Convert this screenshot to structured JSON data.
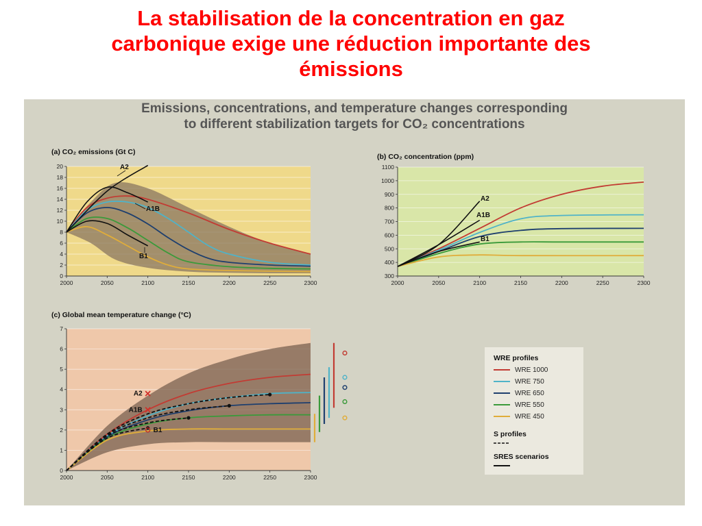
{
  "slide": {
    "title_line1": "La stabilisation de la concentration en gaz",
    "title_line2": "carbonique exige une réduction importante des",
    "title_line3": "émissions"
  },
  "figure": {
    "title_line1": "Emissions, concentrations, and temperature changes corresponding",
    "title_line2": "to different stabilization targets for CO₂ concentrations"
  },
  "colors": {
    "wre1000": "#c23b33",
    "wre750": "#4fb3c8",
    "wre650": "#1e3f6e",
    "wre550": "#3a9a3a",
    "wre450": "#e0ad3a",
    "sres": "#111111",
    "band_a": "#8a7560",
    "band_b": "#8a7560",
    "band_c": "#7a6250",
    "panel_bg_a": "#efd98a",
    "panel_bg_b": "#d9e6a8",
    "panel_bg_c": "#efc8aa"
  },
  "legend": {
    "wre_header": "WRE profiles",
    "wre_items": [
      "WRE 1000",
      "WRE 750",
      "WRE 650",
      "WRE 550",
      "WRE 450"
    ],
    "s_header": "S profiles",
    "sres_header": "SRES scenarios"
  },
  "chart_data": [
    {
      "type": "line",
      "title": "(a) CO₂ emissions (Gt C)",
      "xlim": [
        2000,
        2300
      ],
      "ylim": [
        0,
        20
      ],
      "xticks": [
        2000,
        2050,
        2100,
        2150,
        2200,
        2250,
        2300
      ],
      "yticks": [
        0,
        2,
        4,
        6,
        8,
        10,
        12,
        14,
        16,
        18,
        20
      ],
      "band": {
        "x": [
          2000,
          2030,
          2060,
          2100,
          2150,
          2200,
          2250,
          2300
        ],
        "upper": [
          8,
          13.5,
          17,
          16,
          12.5,
          9,
          6,
          4
        ],
        "lower": [
          8,
          6,
          3,
          1.5,
          0.8,
          0.6,
          0.5,
          0.5
        ]
      },
      "series": [
        {
          "name": "WRE 1000",
          "x": [
            2000,
            2025,
            2050,
            2075,
            2100,
            2150,
            2200,
            2250,
            2300
          ],
          "y": [
            8,
            12.5,
            14.2,
            14.6,
            14,
            11.5,
            8.5,
            6,
            4
          ]
        },
        {
          "name": "WRE 750",
          "x": [
            2000,
            2025,
            2050,
            2075,
            2100,
            2125,
            2150,
            2175,
            2200,
            2250,
            2300
          ],
          "y": [
            8,
            12,
            13.5,
            13.5,
            12.5,
            10.5,
            8,
            5.5,
            4,
            2.5,
            2
          ]
        },
        {
          "name": "WRE 650",
          "x": [
            2000,
            2025,
            2050,
            2075,
            2100,
            2125,
            2150,
            2175,
            2200,
            2250,
            2300
          ],
          "y": [
            8,
            11.5,
            12.5,
            11.5,
            9.5,
            7,
            4.8,
            3.2,
            2.5,
            2,
            1.8
          ]
        },
        {
          "name": "WRE 550",
          "x": [
            2000,
            2025,
            2050,
            2075,
            2100,
            2125,
            2150,
            2200,
            2250,
            2300
          ],
          "y": [
            8,
            10.5,
            10.5,
            8.8,
            6.5,
            4.2,
            2.6,
            1.7,
            1.4,
            1.3
          ]
        },
        {
          "name": "WRE 450",
          "x": [
            2000,
            2025,
            2050,
            2075,
            2100,
            2125,
            2150,
            2200,
            2300
          ],
          "y": [
            8,
            9,
            7.5,
            5.5,
            3.5,
            2,
            1.3,
            1,
            0.8
          ]
        },
        {
          "name": "A2",
          "x": [
            2000,
            2050,
            2100
          ],
          "y": [
            8,
            15.5,
            20.2
          ]
        },
        {
          "name": "A1B",
          "x": [
            2000,
            2025,
            2050,
            2075,
            2100
          ],
          "y": [
            8,
            13.5,
            16.2,
            15.2,
            13.5
          ]
        },
        {
          "name": "B1",
          "x": [
            2000,
            2025,
            2050,
            2075,
            2100
          ],
          "y": [
            8,
            10,
            9.6,
            7.5,
            5.5
          ]
        }
      ],
      "labels": [
        "A2",
        "A1B",
        "B1"
      ]
    },
    {
      "type": "line",
      "title": "(b) CO₂ concentration (ppm)",
      "xlim": [
        2000,
        2300
      ],
      "ylim": [
        300,
        1100
      ],
      "xticks": [
        2000,
        2050,
        2100,
        2150,
        2200,
        2250,
        2300
      ],
      "yticks": [
        300,
        400,
        500,
        600,
        700,
        800,
        900,
        1000,
        1100
      ],
      "series": [
        {
          "name": "WRE 1000",
          "x": [
            2000,
            2050,
            2100,
            2150,
            2200,
            2250,
            2300
          ],
          "y": [
            370,
            500,
            650,
            800,
            900,
            960,
            990
          ]
        },
        {
          "name": "WRE 750",
          "x": [
            2000,
            2050,
            2100,
            2150,
            2200,
            2300
          ],
          "y": [
            370,
            490,
            620,
            720,
            745,
            750
          ]
        },
        {
          "name": "WRE 650",
          "x": [
            2000,
            2050,
            2100,
            2150,
            2200,
            2300
          ],
          "y": [
            370,
            480,
            590,
            635,
            648,
            650
          ]
        },
        {
          "name": "WRE 550",
          "x": [
            2000,
            2050,
            2100,
            2150,
            2200,
            2300
          ],
          "y": [
            370,
            465,
            535,
            550,
            550,
            550
          ]
        },
        {
          "name": "WRE 450",
          "x": [
            2000,
            2050,
            2100,
            2150,
            2300
          ],
          "y": [
            370,
            440,
            455,
            450,
            450
          ]
        },
        {
          "name": "A2",
          "x": [
            2000,
            2050,
            2100
          ],
          "y": [
            370,
            530,
            850
          ]
        },
        {
          "name": "A1B",
          "x": [
            2000,
            2050,
            2100
          ],
          "y": [
            370,
            530,
            710
          ]
        },
        {
          "name": "B1",
          "x": [
            2000,
            2050,
            2100
          ],
          "y": [
            370,
            480,
            550
          ]
        }
      ],
      "labels": [
        "A2",
        "A1B",
        "B1"
      ]
    },
    {
      "type": "line",
      "title": "(c) Global mean temperature change (°C)",
      "xlim": [
        2000,
        2300
      ],
      "ylim": [
        0,
        7
      ],
      "xticks": [
        2000,
        2050,
        2100,
        2150,
        2200,
        2250,
        2300
      ],
      "yticks": [
        0,
        1,
        2,
        3,
        4,
        5,
        6,
        7
      ],
      "band": {
        "x": [
          2000,
          2050,
          2100,
          2150,
          2200,
          2250,
          2300
        ],
        "upper": [
          0,
          2.2,
          3.7,
          4.8,
          5.5,
          6,
          6.3
        ],
        "lower": [
          0,
          0.9,
          1.3,
          1.4,
          1.4,
          1.4,
          1.4
        ]
      },
      "series": [
        {
          "name": "WRE 1000",
          "x": [
            2000,
            2050,
            2100,
            2150,
            2200,
            2250,
            2300
          ],
          "y": [
            0,
            1.8,
            3,
            3.8,
            4.3,
            4.6,
            4.75
          ]
        },
        {
          "name": "WRE 750",
          "x": [
            2000,
            2050,
            2100,
            2150,
            2200,
            2250,
            2300
          ],
          "y": [
            0,
            1.7,
            2.7,
            3.3,
            3.6,
            3.8,
            3.85
          ]
        },
        {
          "name": "WRE 650",
          "x": [
            2000,
            2050,
            2100,
            2150,
            2200,
            2250,
            2300
          ],
          "y": [
            0,
            1.65,
            2.5,
            2.95,
            3.2,
            3.3,
            3.35
          ]
        },
        {
          "name": "WRE 550",
          "x": [
            2000,
            2050,
            2100,
            2150,
            2200,
            2250,
            2300
          ],
          "y": [
            0,
            1.6,
            2.3,
            2.6,
            2.7,
            2.75,
            2.75
          ]
        },
        {
          "name": "WRE 450",
          "x": [
            2000,
            2050,
            2100,
            2150,
            2200,
            2250,
            2300
          ],
          "y": [
            0,
            1.5,
            1.95,
            2.05,
            2.05,
            2.05,
            2.05
          ]
        },
        {
          "name": "S",
          "x": [
            2000,
            2050,
            2100,
            2150,
            2200,
            2250
          ],
          "y": [
            0,
            1.8,
            2.8,
            3.3,
            3.6,
            3.75
          ]
        },
        {
          "name": "S",
          "x": [
            2000,
            2050,
            2100,
            2150,
            2200
          ],
          "y": [
            0,
            1.75,
            2.6,
            3,
            3.2
          ]
        },
        {
          "name": "S",
          "x": [
            2000,
            2050,
            2100,
            2150
          ],
          "y": [
            0,
            1.7,
            2.35,
            2.6
          ]
        },
        {
          "name": "S",
          "x": [
            2000,
            2050,
            2100
          ],
          "y": [
            0,
            1.6,
            2.1
          ]
        }
      ],
      "markers": [
        {
          "label": "A2",
          "x": 2100,
          "y": 3.8
        },
        {
          "label": "A1B",
          "x": 2100,
          "y": 3.0
        },
        {
          "label": "B1",
          "x": 2100,
          "y": 2.0
        }
      ],
      "stabilization_points": [
        {
          "x": 2250,
          "y": 3.75
        },
        {
          "x": 2200,
          "y": 3.2
        },
        {
          "x": 2150,
          "y": 2.6
        },
        {
          "x": 2100,
          "y": 2.1
        }
      ],
      "equilibrium_ranges": [
        {
          "series": "WRE 1000",
          "min": 3.1,
          "max": 6.3,
          "best": 5.8
        },
        {
          "series": "WRE 750",
          "min": 2.6,
          "max": 5.1,
          "best": 4.6
        },
        {
          "series": "WRE 650",
          "min": 2.3,
          "max": 4.6,
          "best": 4.1
        },
        {
          "series": "WRE 550",
          "min": 1.9,
          "max": 3.7,
          "best": 3.4
        },
        {
          "series": "WRE 450",
          "min": 1.4,
          "max": 2.8,
          "best": 2.6
        }
      ]
    }
  ]
}
